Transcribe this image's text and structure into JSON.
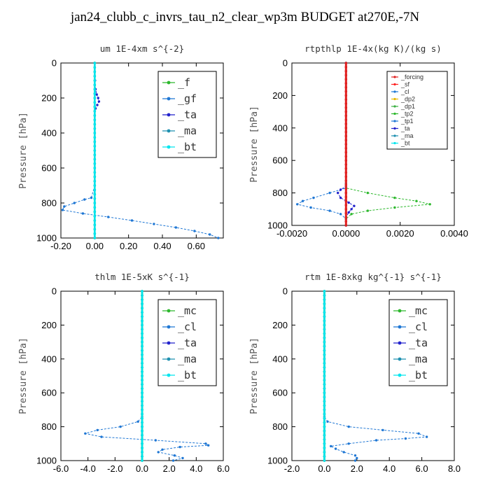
{
  "figure_title": "jan24_clubb_c_invrs_tau_n2_clear_wp3m  BUDGET at270E,-7N",
  "colors": {
    "_f": "#2db82d",
    "_gf": "#1f77d4",
    "_ta": "#2222cc",
    "_ma": "#1e90b0",
    "_bt": "#00e5ee",
    "_mc": "#2db82d",
    "_cl": "#1f77d4",
    "_forcing": "#e02020",
    "_sf": "#ff2020",
    "_dp2": "#e8b800",
    "_dp1": "#3cb043",
    "_tp2": "#2db82d",
    "_tp1": "#1f77d4"
  },
  "chart_data": [
    {
      "type": "line",
      "title": "um   1E-4xm s^{-2}",
      "ylabel": "Pressure [hPa]",
      "xlim": [
        -0.2,
        0.76
      ],
      "ylim": [
        1000,
        0
      ],
      "x_ticks": [
        "-0.20",
        "0.00",
        "0.20",
        "0.40",
        "0.60"
      ],
      "x_tick_values": [
        -0.2,
        0.0,
        0.2,
        0.4,
        0.6
      ],
      "y_ticks": [
        "0",
        "200",
        "400",
        "600",
        "800",
        "1000"
      ],
      "y_tick_values": [
        0,
        200,
        400,
        600,
        800,
        1000
      ],
      "legend": [
        "_f",
        "_gf",
        "_ta",
        "_ma",
        "_bt"
      ],
      "legend_style": "big",
      "series": [
        {
          "name": "_ta",
          "p": [
            0,
            100,
            150,
            180,
            200,
            220,
            240,
            260,
            300,
            400,
            600,
            800,
            1000
          ],
          "x": [
            0.0,
            0.002,
            0.005,
            0.012,
            0.02,
            0.025,
            0.015,
            0.005,
            0.0,
            0.0,
            0.0,
            0.0,
            0.0
          ]
        },
        {
          "name": "_gf",
          "p": [
            0,
            700,
            770,
            780,
            800,
            820,
            840,
            860,
            880,
            900,
            920,
            940,
            960,
            980,
            1000
          ],
          "x": [
            0.0,
            0.0,
            -0.02,
            -0.06,
            -0.12,
            -0.18,
            -0.19,
            -0.07,
            0.08,
            0.22,
            0.35,
            0.48,
            0.59,
            0.68,
            0.73
          ]
        },
        {
          "name": "_f",
          "p": [
            0,
            1000
          ],
          "x": [
            0.0,
            0.0
          ]
        },
        {
          "name": "_ma",
          "p": [
            0,
            1000
          ],
          "x": [
            0.0,
            0.0
          ]
        },
        {
          "name": "_bt",
          "p": [
            0,
            1000
          ],
          "x": [
            0.0,
            0.0
          ]
        }
      ]
    },
    {
      "type": "line",
      "title": "rtpthlp  1E-4x(kg K)/(kg s)",
      "ylabel": "Pressure [hPa]",
      "xlim": [
        -0.002,
        0.004
      ],
      "ylim": [
        1000,
        0
      ],
      "x_ticks": [
        "-0.0020",
        "0.0000",
        "0.0020",
        "0.0040"
      ],
      "x_tick_values": [
        -0.002,
        0.0,
        0.002,
        0.004
      ],
      "y_ticks": [
        "0",
        "200",
        "400",
        "600",
        "800",
        "1000"
      ],
      "y_tick_values": [
        0,
        200,
        400,
        600,
        800,
        1000
      ],
      "legend": [
        "_forcing",
        "_sf",
        "_cl",
        "_dp2",
        "_dp1",
        "_tp2",
        "_tp1",
        "_ta",
        "_ma",
        "_bt"
      ],
      "legend_style": "small",
      "series": [
        {
          "name": "_tp2",
          "p": [
            0,
            740,
            770,
            800,
            830,
            850,
            870,
            890,
            910,
            930,
            960,
            1000
          ],
          "x": [
            0.0,
            0.0,
            0.0,
            0.0008,
            0.0018,
            0.0026,
            0.0031,
            0.0018,
            0.0008,
            0.0002,
            0.0,
            0.0
          ]
        },
        {
          "name": "_tp1",
          "p": [
            0,
            740,
            770,
            800,
            830,
            850,
            870,
            890,
            910,
            930,
            960,
            1000
          ],
          "x": [
            0.0,
            0.0,
            0.0,
            -0.0006,
            -0.0012,
            -0.0016,
            -0.0018,
            -0.0013,
            -0.0006,
            -0.0002,
            0.0,
            0.0
          ]
        },
        {
          "name": "_ta",
          "p": [
            0,
            760,
            780,
            800,
            830,
            860,
            880,
            900,
            920,
            950,
            1000
          ],
          "x": [
            0.0,
            0.0,
            -0.0002,
            -0.0003,
            -0.0002,
            0.0001,
            0.0003,
            0.0002,
            0.0001,
            0.0,
            0.0
          ]
        },
        {
          "name": "_forcing",
          "p": [
            0,
            1000
          ],
          "x": [
            0.0,
            0.0
          ]
        }
      ]
    },
    {
      "type": "line",
      "title": "thlm  1E-5xK s^{-1}",
      "ylabel": "Pressure [hPa]",
      "xlim": [
        -6.0,
        6.0
      ],
      "ylim": [
        1000,
        0
      ],
      "x_ticks": [
        "-6.0",
        "-4.0",
        "-2.0",
        "0.0",
        "2.0",
        "4.0",
        "6.0"
      ],
      "x_tick_values": [
        -6,
        -4,
        -2,
        0,
        2,
        4,
        6
      ],
      "y_ticks": [
        "0",
        "200",
        "400",
        "600",
        "800",
        "1000"
      ],
      "y_tick_values": [
        0,
        200,
        400,
        600,
        800,
        1000
      ],
      "legend": [
        "_mc",
        "_cl",
        "_ta",
        "_ma",
        "_bt"
      ],
      "legend_style": "big",
      "series": [
        {
          "name": "_cl",
          "p": [
            0,
            740,
            770,
            800,
            820,
            840,
            860,
            880,
            900,
            910,
            920,
            935,
            950,
            970,
            985,
            1000
          ],
          "x": [
            0.0,
            0.0,
            -0.3,
            -1.6,
            -3.3,
            -4.2,
            -3.0,
            1.0,
            4.7,
            4.9,
            2.8,
            1.5,
            1.2,
            2.4,
            3.0,
            2.3
          ]
        },
        {
          "name": "_mc",
          "p": [
            0,
            1000
          ],
          "x": [
            0.0,
            0.0
          ]
        },
        {
          "name": "_ma",
          "p": [
            0,
            1000
          ],
          "x": [
            0.0,
            0.0
          ]
        },
        {
          "name": "_bt",
          "p": [
            0,
            1000
          ],
          "x": [
            0.0,
            0.0
          ]
        }
      ]
    },
    {
      "type": "line",
      "title": "rtm  1E-8xkg kg^{-1} s^{-1}",
      "ylabel": "Pressure [hPa]",
      "xlim": [
        -2.0,
        8.0
      ],
      "ylim": [
        1000,
        0
      ],
      "x_ticks": [
        "-2.0",
        "0.0",
        "2.0",
        "4.0",
        "6.0",
        "8.0"
      ],
      "x_tick_values": [
        -2,
        0,
        2,
        4,
        6,
        8
      ],
      "y_ticks": [
        "0",
        "200",
        "400",
        "600",
        "800",
        "1000"
      ],
      "y_tick_values": [
        0,
        200,
        400,
        600,
        800,
        1000
      ],
      "legend": [
        "_mc",
        "_cl",
        "_ta",
        "_ma",
        "_bt"
      ],
      "legend_style": "big",
      "series": [
        {
          "name": "_cl",
          "p": [
            0,
            740,
            770,
            800,
            820,
            840,
            860,
            870,
            880,
            900,
            915,
            930,
            950,
            970,
            985,
            1000
          ],
          "x": [
            0.0,
            0.0,
            0.2,
            1.5,
            3.6,
            5.8,
            6.3,
            5.0,
            3.2,
            1.5,
            0.4,
            0.7,
            1.2,
            1.9,
            2.0,
            1.9
          ]
        },
        {
          "name": "_mc",
          "p": [
            0,
            1000
          ],
          "x": [
            0.0,
            0.0
          ]
        },
        {
          "name": "_ma",
          "p": [
            0,
            1000
          ],
          "x": [
            0.0,
            0.0
          ]
        },
        {
          "name": "_bt",
          "p": [
            0,
            1000
          ],
          "x": [
            0.0,
            0.0
          ]
        }
      ]
    }
  ]
}
